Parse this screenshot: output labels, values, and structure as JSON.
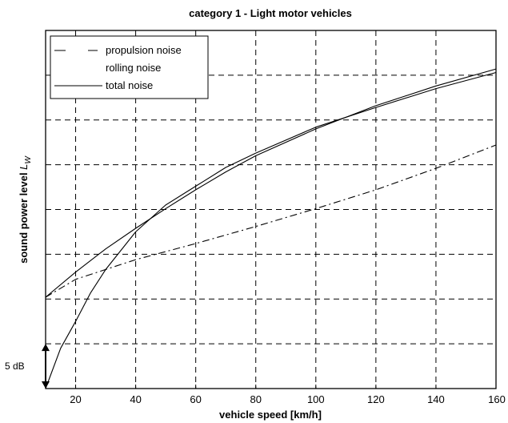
{
  "chart_data": {
    "type": "line",
    "title": "category 1 - Light motor vehicles",
    "xlabel": "vehicle speed [km/h]",
    "ylabel_text": "sound power level ",
    "ylabel_symbol": "L",
    "ylabel_subscript": "W",
    "xlim": [
      10,
      160
    ],
    "xticks": [
      20,
      40,
      60,
      80,
      100,
      120,
      140,
      160
    ],
    "ylim": [
      0,
      40
    ],
    "y_grid_step": 5,
    "grid": true,
    "scale_bar_label": "5 dB",
    "scale_bar_value": 5,
    "legend_position": "top-left",
    "series": [
      {
        "name": "propulsion noise",
        "style": "dashdot",
        "x": [
          10,
          20,
          40,
          60,
          80,
          100,
          120,
          140,
          160
        ],
        "y": [
          10.2,
          12.2,
          14.4,
          16.2,
          18.1,
          20.1,
          22.2,
          24.6,
          27.2
        ]
      },
      {
        "name": "rolling noise",
        "style": "solid",
        "x": [
          10,
          15,
          20,
          25,
          30,
          40,
          50,
          60,
          70,
          80,
          100,
          120,
          140,
          160
        ],
        "y": [
          0,
          4.5,
          7.5,
          10.7,
          13.3,
          17.5,
          20.5,
          22.6,
          24.7,
          26.3,
          29.2,
          31.4,
          33.5,
          35.3
        ]
      },
      {
        "name": "total noise",
        "style": "solid",
        "x": [
          10,
          20,
          30,
          40,
          50,
          60,
          70,
          80,
          100,
          120,
          140,
          160
        ],
        "y": [
          10.2,
          13.0,
          15.6,
          17.9,
          20.1,
          22.2,
          24.2,
          26.0,
          29.0,
          31.6,
          33.8,
          35.7
        ]
      }
    ]
  }
}
